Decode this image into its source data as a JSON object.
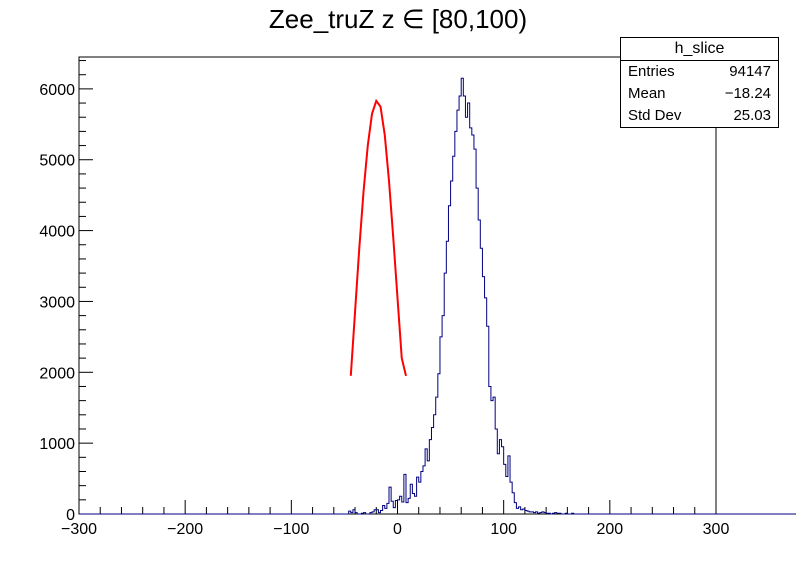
{
  "chart_data": {
    "type": "histogram",
    "title": "Zee_truZ z  ∈ [80,100)",
    "xlim": [
      -300,
      300
    ],
    "ylim": [
      0,
      6450
    ],
    "x_ticks": [
      -300,
      -200,
      -100,
      0,
      100,
      200,
      300
    ],
    "x_tick_labels": [
      "−300",
      "−200",
      "−100",
      "0",
      "100",
      "200",
      "300"
    ],
    "y_ticks": [
      0,
      1000,
      2000,
      3000,
      4000,
      5000,
      6000
    ],
    "y_tick_labels": [
      "0",
      "1000",
      "2000",
      "3000",
      "4000",
      "5000",
      "6000"
    ],
    "series": [
      {
        "role": "histogram",
        "color": "#000080",
        "bin_edges_start": -300,
        "bin_width": 2,
        "bin_values": [
          0,
          0,
          0,
          0,
          0,
          0,
          0,
          0,
          0,
          0,
          0,
          0,
          0,
          0,
          0,
          0,
          0,
          0,
          0,
          0,
          0,
          0,
          0,
          0,
          0,
          0,
          0,
          0,
          0,
          0,
          0,
          0,
          0,
          0,
          0,
          0,
          0,
          0,
          0,
          0,
          0,
          0,
          0,
          0,
          0,
          0,
          0,
          0,
          0,
          0,
          0,
          0,
          0,
          0,
          0,
          0,
          0,
          0,
          0,
          0,
          0,
          0,
          0,
          0,
          0,
          0,
          0,
          0,
          0,
          0,
          0,
          0,
          0,
          0,
          0,
          0,
          0,
          0,
          0,
          0,
          0,
          0,
          0,
          0,
          0,
          0,
          0,
          0,
          0,
          0,
          0,
          0,
          0,
          0,
          0,
          0,
          0,
          0,
          0,
          0,
          0,
          0,
          0,
          0,
          0,
          0,
          0,
          0,
          0,
          0,
          0,
          0,
          0,
          0,
          0,
          0,
          0,
          0,
          0,
          0,
          0,
          0,
          0,
          0,
          0,
          0,
          0,
          40,
          20,
          60,
          20,
          0,
          0,
          10,
          20,
          0,
          0,
          20,
          30,
          60,
          60,
          20,
          50,
          120,
          80,
          150,
          380,
          180,
          90,
          190,
          200,
          250,
          170,
          560,
          160,
          220,
          420,
          290,
          250,
          520,
          450,
          600,
          680,
          920,
          750,
          1050,
          1220,
          1400,
          1650,
          1980,
          2500,
          2800,
          3400,
          3850,
          4350,
          4700,
          5050,
          5400,
          5700,
          5900,
          6150,
          5900,
          5600,
          5800,
          5450,
          5350,
          5150,
          4600,
          4150,
          3750,
          3350,
          3050,
          2650,
          1800,
          1600,
          1650,
          1200,
          850,
          1050,
          950,
          700,
          530,
          820,
          450,
          300,
          160,
          80,
          100,
          60,
          70,
          50,
          40,
          30,
          30,
          20,
          30,
          10,
          20,
          30,
          20,
          10,
          10,
          0,
          10,
          20,
          10,
          10,
          0,
          0,
          10,
          0,
          0,
          10,
          0,
          0,
          0,
          0,
          0,
          0,
          0,
          0,
          0,
          0,
          0,
          0,
          0,
          0,
          0,
          0,
          0,
          0,
          0,
          0,
          0,
          0,
          0,
          0,
          0,
          0,
          0,
          0,
          0,
          0,
          0,
          0,
          0,
          0,
          0,
          0,
          0,
          0,
          0,
          0,
          0,
          0,
          0,
          0,
          0,
          0,
          0,
          0,
          0,
          0,
          0,
          0,
          0,
          0,
          0,
          0,
          0,
          0,
          0,
          0,
          0,
          0,
          0,
          0,
          0,
          0,
          0,
          0,
          0,
          0,
          0,
          0,
          0,
          0,
          0,
          0,
          0,
          0,
          0,
          0,
          0,
          0,
          0,
          0,
          0,
          0,
          0,
          0,
          0,
          0,
          0,
          0,
          0,
          0,
          0,
          0,
          0,
          0,
          0,
          0,
          0,
          0,
          0,
          0,
          0,
          0,
          0,
          0,
          0,
          0,
          0,
          0,
          0,
          0,
          0,
          0,
          0
        ]
      },
      {
        "role": "fit",
        "color": "#ff0000",
        "x": [
          -44,
          -40,
          -36,
          -32,
          -28,
          -24,
          -20,
          -16,
          -12,
          -8,
          -4,
          0,
          4,
          8
        ],
        "y": [
          1950,
          2850,
          3750,
          4550,
          5200,
          5650,
          5830,
          5750,
          5350,
          4700,
          3900,
          3050,
          2200,
          1950
        ]
      }
    ],
    "stats_box": {
      "name": "h_slice",
      "rows": [
        {
          "label": "Entries",
          "value": "94147"
        },
        {
          "label": "Mean",
          "value": "−18.24"
        },
        {
          "label": "Std Dev",
          "value": "25.03"
        }
      ]
    },
    "grid": false,
    "legend": "top-right"
  }
}
